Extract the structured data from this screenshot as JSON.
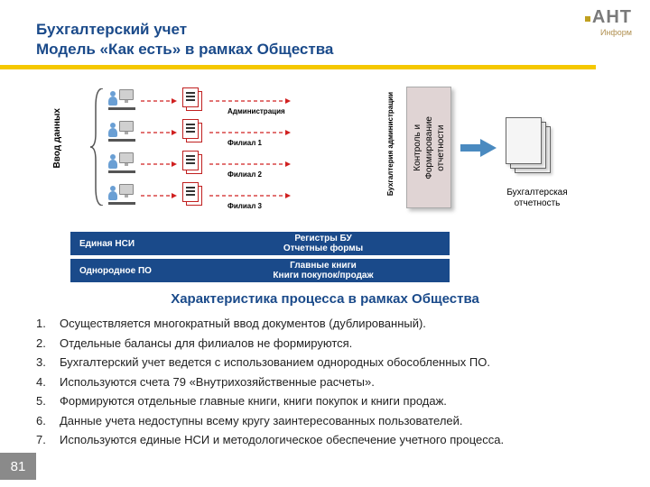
{
  "logo": {
    "text": "АНТ",
    "sub": "Информ"
  },
  "title": {
    "line1": "Бухгалтерский учет",
    "line2": "Модель «Как есть» в рамках Общества"
  },
  "colors": {
    "accent": "#1a4a8a",
    "yellow": "#f5c800",
    "arrow_red": "#d02020",
    "box_bg": "#e0d4d4",
    "doc_red": "#c02020",
    "page_gray": "#8a8a8a"
  },
  "diagram": {
    "input_label": "Ввод данных",
    "rows": [
      {
        "label": "Администрация"
      },
      {
        "label": "Филиал 1"
      },
      {
        "label": "Филиал 2"
      },
      {
        "label": "Филиал 3"
      }
    ],
    "mid_vlabel": "Бухгалтерия администрации",
    "control_box": "Контроль и\nФормирование\nотчетности",
    "output_label": "Бухгалтерская\nотчетность"
  },
  "bands": [
    {
      "left": "Единая НСИ",
      "mid": "Регистры БУ\nОтчетные формы"
    },
    {
      "left": "Однородное ПО",
      "mid": "Главные книги\nКниги покупок/продаж"
    }
  ],
  "subtitle": "Характеристика процесса в рамках Общества",
  "list": [
    "Осуществляется многократный ввод документов (дублированный).",
    "Отдельные балансы для филиалов не формируются.",
    "Бухгалтерский учет ведется с использованием однородных обособленных ПО.",
    "Используются счета 79 «Внутрихозяйственные расчеты».",
    "Формируются отдельные главные книги, книги покупок и книги продаж.",
    "Данные учета недоступны всему кругу заинтересованных пользователей.",
    "Используются единые НСИ и методологическое обеспечение учетного процесса."
  ],
  "page": "81"
}
